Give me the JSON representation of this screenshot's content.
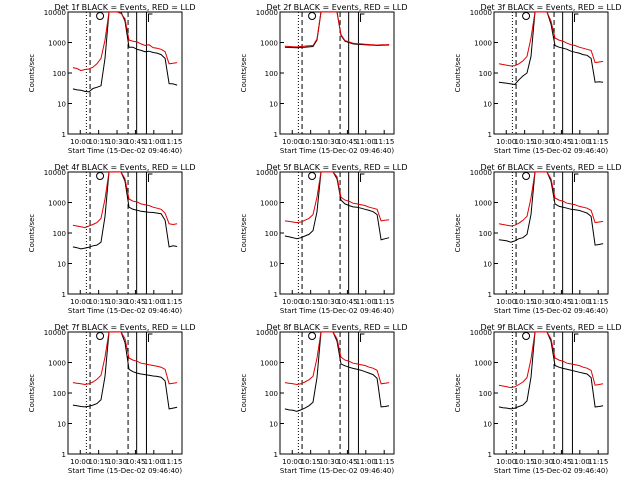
{
  "colors": {
    "black": "#000000",
    "red": "#e00000"
  },
  "chart_data": [
    {
      "type": "line",
      "title": "Det 1f BLACK = Events, RED = LLD",
      "black": [
        30,
        28,
        27,
        25,
        24,
        31,
        34,
        38,
        300,
        15000,
        14000,
        15000,
        13000,
        5000,
        700,
        700,
        600,
        550,
        500,
        520,
        470,
        450,
        400,
        300,
        45,
        44,
        40
      ],
      "red": [
        150,
        140,
        120,
        130,
        135,
        155,
        200,
        300,
        1200,
        15000,
        14000,
        15000,
        9000,
        6000,
        1200,
        1100,
        1050,
        900,
        800,
        850,
        680,
        650,
        600,
        500,
        200,
        210,
        220
      ]
    },
    {
      "type": "line",
      "title": "Det 2f BLACK = Events, RED = LLD",
      "black": [
        700,
        690,
        680,
        670,
        690,
        700,
        720,
        740,
        1200,
        15000,
        14000,
        15000,
        14000,
        10000,
        1700,
        1100,
        1000,
        900,
        880,
        860,
        850,
        830,
        820,
        800,
        810,
        820,
        830
      ],
      "red": [
        750,
        740,
        730,
        720,
        740,
        760,
        780,
        800,
        1300,
        15000,
        14000,
        15000,
        14000,
        11000,
        1800,
        1150,
        1050,
        950,
        920,
        900,
        880,
        860,
        850,
        820,
        840,
        850,
        860
      ]
    },
    {
      "type": "line",
      "title": "Det 3f BLACK = Events, RED = LLD",
      "black": [
        50,
        48,
        46,
        44,
        42,
        60,
        80,
        100,
        350,
        15000,
        14000,
        15000,
        14000,
        4000,
        800,
        700,
        650,
        600,
        520,
        480,
        450,
        400,
        380,
        300,
        50,
        52,
        50
      ],
      "red": [
        200,
        190,
        180,
        170,
        175,
        200,
        250,
        350,
        1400,
        15000,
        14000,
        15000,
        12000,
        5000,
        1400,
        1200,
        1100,
        950,
        850,
        800,
        700,
        650,
        600,
        550,
        220,
        230,
        240
      ]
    },
    {
      "type": "line",
      "title": "Det 4f BLACK = Events, RED = LLD",
      "black": [
        35,
        33,
        30,
        32,
        34,
        38,
        40,
        50,
        350,
        15000,
        14000,
        15000,
        12000,
        5000,
        700,
        600,
        560,
        520,
        500,
        480,
        470,
        450,
        430,
        260,
        35,
        38,
        36
      ],
      "red": [
        180,
        170,
        160,
        150,
        170,
        190,
        220,
        300,
        1300,
        15000,
        14000,
        15000,
        10000,
        6000,
        1300,
        1100,
        1050,
        900,
        850,
        800,
        700,
        650,
        600,
        450,
        200,
        190,
        200
      ]
    },
    {
      "type": "line",
      "title": "Det 5f BLACK = Events, RED = LLD",
      "black": [
        80,
        75,
        70,
        65,
        70,
        80,
        90,
        120,
        500,
        15000,
        14000,
        15000,
        14000,
        6000,
        1200,
        900,
        800,
        720,
        700,
        650,
        600,
        550,
        500,
        400,
        60,
        65,
        70
      ],
      "red": [
        250,
        240,
        230,
        220,
        230,
        260,
        300,
        400,
        1500,
        15000,
        14000,
        15000,
        12000,
        7000,
        1500,
        1200,
        1100,
        950,
        900,
        850,
        800,
        700,
        650,
        600,
        250,
        260,
        270
      ]
    },
    {
      "type": "line",
      "title": "Det 6f BLACK = Events, RED = LLD",
      "black": [
        60,
        58,
        55,
        50,
        55,
        65,
        70,
        90,
        400,
        15000,
        14000,
        15000,
        13000,
        5000,
        900,
        750,
        700,
        650,
        600,
        580,
        550,
        500,
        450,
        350,
        40,
        42,
        45
      ],
      "red": [
        200,
        190,
        180,
        170,
        180,
        210,
        260,
        350,
        1400,
        15000,
        14000,
        15000,
        11000,
        6000,
        1400,
        1200,
        1100,
        950,
        900,
        850,
        750,
        700,
        650,
        550,
        220,
        230,
        240
      ]
    },
    {
      "type": "line",
      "title": "Det 7f BLACK = Events, RED = LLD",
      "black": [
        40,
        38,
        36,
        35,
        37,
        40,
        45,
        60,
        350,
        15000,
        14000,
        15000,
        12000,
        4500,
        600,
        500,
        450,
        420,
        400,
        380,
        360,
        350,
        330,
        250,
        30,
        32,
        34
      ],
      "red": [
        220,
        210,
        200,
        190,
        200,
        230,
        280,
        380,
        1500,
        15000,
        14000,
        15000,
        10000,
        6000,
        1400,
        1200,
        1100,
        950,
        900,
        850,
        800,
        750,
        700,
        600,
        200,
        210,
        220
      ]
    },
    {
      "type": "line",
      "title": "Det 8f BLACK = Events, RED = LLD",
      "black": [
        30,
        28,
        27,
        25,
        28,
        32,
        38,
        50,
        320,
        15000,
        14000,
        15000,
        13000,
        5000,
        900,
        780,
        700,
        640,
        600,
        560,
        500,
        450,
        400,
        300,
        35,
        36,
        38
      ],
      "red": [
        220,
        210,
        200,
        190,
        200,
        230,
        270,
        350,
        1400,
        15000,
        14000,
        15000,
        11000,
        6000,
        1500,
        1200,
        1100,
        950,
        900,
        850,
        800,
        700,
        650,
        550,
        200,
        210,
        220
      ]
    },
    {
      "type": "line",
      "title": "Det 9f BLACK = Events, RED = LLD",
      "black": [
        35,
        33,
        32,
        30,
        32,
        36,
        40,
        55,
        330,
        15000,
        14000,
        15000,
        12000,
        5000,
        800,
        700,
        640,
        600,
        560,
        520,
        480,
        450,
        420,
        320,
        35,
        36,
        38
      ],
      "red": [
        180,
        170,
        160,
        150,
        160,
        190,
        230,
        320,
        1300,
        15000,
        14000,
        15000,
        10000,
        6000,
        1400,
        1200,
        1100,
        950,
        900,
        850,
        800,
        700,
        650,
        550,
        180,
        190,
        200
      ]
    }
  ],
  "axes": {
    "x_time_labels": [
      "10:00",
      "10:15",
      "10:30",
      "10:45",
      "11:00",
      "11:15"
    ],
    "x_title": "Start Time (15-Dec-02 09:46:40)",
    "y_ticks": [
      "10000",
      "1000",
      "100",
      "10",
      "1"
    ],
    "y_title": "Counts/sec",
    "ylim": [
      1,
      10000
    ],
    "y_scale": "log"
  },
  "markers": {
    "dotted": "10:05",
    "dashed_1": "10:08",
    "dashed_2": "10:39",
    "solid": "10:46",
    "box": "10:54"
  }
}
